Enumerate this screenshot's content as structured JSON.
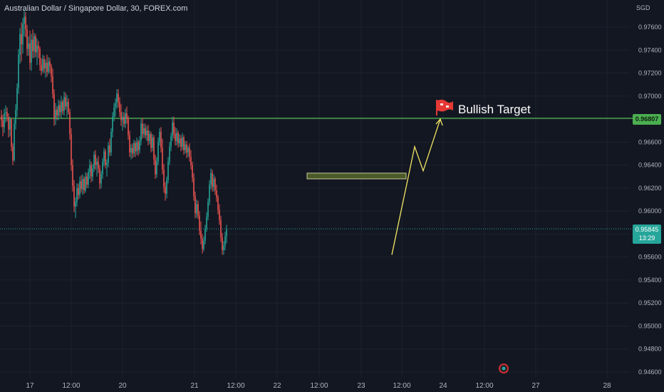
{
  "header": {
    "title": "Australian Dollar / Singapore Dollar, 30, FOREX.com",
    "currency": "SGD"
  },
  "price_tags": {
    "resistance": "0.96807",
    "current": "0.95845",
    "countdown": "13:29"
  },
  "annotation": {
    "label": "Bullish Target",
    "flag_icon": "red-flag-icon"
  },
  "colors": {
    "background": "#131722",
    "up": "#26a69a",
    "down": "#ef5350",
    "level": "#4caf50",
    "projection": "#f5e663"
  },
  "chart_data": {
    "type": "candlestick",
    "symbol": "Australian Dollar / Singapore Dollar",
    "interval": "30",
    "source": "FOREX.com",
    "ylim": [
      0.9455,
      0.9785
    ],
    "y_ticks": [
      "0.97600",
      "0.97400",
      "0.97200",
      "0.97000",
      "0.96600",
      "0.96400",
      "0.96200",
      "0.96000",
      "0.95600",
      "0.95400",
      "0.95200",
      "0.95000",
      "0.94800",
      "0.94600"
    ],
    "x_ticks": [
      "17",
      "12:00",
      "20",
      "21",
      "12:00",
      "22",
      "12:00",
      "23",
      "12:00",
      "24",
      "12:00",
      "27",
      "28"
    ],
    "horizontal_levels": [
      {
        "price": 0.96807,
        "color": "#4caf50"
      },
      {
        "price": 0.95845,
        "color": "#26a69a",
        "style": "dotted"
      }
    ],
    "zone": {
      "top": 0.9633,
      "bottom": 0.9628,
      "color": "#4a5a2a"
    },
    "projection_path": [
      {
        "bar": 274,
        "price": 0.9562
      },
      {
        "bar": 290,
        "price": 0.9656
      },
      {
        "bar": 296,
        "price": 0.9635
      },
      {
        "bar": 308,
        "price": 0.968
      }
    ],
    "candles_ohlc": [
      [
        0.9683,
        0.9688,
        0.9673,
        0.9679
      ],
      [
        0.9679,
        0.9684,
        0.9665,
        0.9673
      ],
      [
        0.9673,
        0.9689,
        0.9668,
        0.9685
      ],
      [
        0.9685,
        0.9692,
        0.9677,
        0.9686
      ],
      [
        0.9686,
        0.969,
        0.9678,
        0.9682
      ],
      [
        0.9682,
        0.9685,
        0.9664,
        0.9671
      ],
      [
        0.9671,
        0.9682,
        0.9665,
        0.968
      ],
      [
        0.968,
        0.9681,
        0.9652,
        0.9656
      ],
      [
        0.9656,
        0.9659,
        0.964,
        0.9644
      ],
      [
        0.9644,
        0.968,
        0.9643,
        0.9676
      ],
      [
        0.9676,
        0.9693,
        0.9671,
        0.9688
      ],
      [
        0.9688,
        0.9711,
        0.9682,
        0.9707
      ],
      [
        0.9707,
        0.9741,
        0.9702,
        0.9736
      ],
      [
        0.9736,
        0.9759,
        0.9728,
        0.9754
      ],
      [
        0.9754,
        0.9764,
        0.973,
        0.9745
      ],
      [
        0.9745,
        0.9768,
        0.9737,
        0.9763
      ],
      [
        0.9763,
        0.9775,
        0.9752,
        0.9769
      ],
      [
        0.9769,
        0.9773,
        0.9751,
        0.9758
      ],
      [
        0.9758,
        0.9762,
        0.9735,
        0.9741
      ],
      [
        0.9741,
        0.9752,
        0.9735,
        0.9746
      ],
      [
        0.9746,
        0.9757,
        0.9723,
        0.9729
      ],
      [
        0.9729,
        0.9754,
        0.9722,
        0.9749
      ],
      [
        0.9749,
        0.9758,
        0.9733,
        0.9739
      ],
      [
        0.9739,
        0.9755,
        0.9733,
        0.9752
      ],
      [
        0.9752,
        0.9754,
        0.9734,
        0.9738
      ],
      [
        0.9738,
        0.975,
        0.9727,
        0.9744
      ],
      [
        0.9744,
        0.9748,
        0.9733,
        0.9741
      ],
      [
        0.9741,
        0.9743,
        0.9722,
        0.9727
      ],
      [
        0.9727,
        0.9733,
        0.9718,
        0.9722
      ],
      [
        0.9722,
        0.9736,
        0.972,
        0.9732
      ],
      [
        0.9732,
        0.9735,
        0.972,
        0.9724
      ],
      [
        0.9724,
        0.9732,
        0.9716,
        0.9729
      ],
      [
        0.9729,
        0.9736,
        0.9717,
        0.9721
      ],
      [
        0.9721,
        0.9734,
        0.9719,
        0.973
      ],
      [
        0.973,
        0.9733,
        0.972,
        0.9726
      ],
      [
        0.9726,
        0.9728,
        0.9712,
        0.9717
      ],
      [
        0.9717,
        0.9724,
        0.9698,
        0.9702
      ],
      [
        0.9702,
        0.9706,
        0.9674,
        0.968
      ],
      [
        0.968,
        0.9694,
        0.9675,
        0.9688
      ],
      [
        0.9688,
        0.9691,
        0.9679,
        0.9683
      ],
      [
        0.9683,
        0.9697,
        0.9679,
        0.9692
      ],
      [
        0.9692,
        0.9696,
        0.9682,
        0.9686
      ],
      [
        0.9686,
        0.97,
        0.9681,
        0.9695
      ],
      [
        0.9695,
        0.9697,
        0.9684,
        0.9687
      ],
      [
        0.9687,
        0.9704,
        0.9683,
        0.9699
      ],
      [
        0.9699,
        0.9703,
        0.9688,
        0.9691
      ],
      [
        0.9691,
        0.9701,
        0.9682,
        0.9695
      ],
      [
        0.9695,
        0.9698,
        0.9684,
        0.9686
      ],
      [
        0.9686,
        0.9689,
        0.9662,
        0.9667
      ],
      [
        0.9667,
        0.9672,
        0.9635,
        0.964
      ],
      [
        0.964,
        0.9645,
        0.9617,
        0.9622
      ],
      [
        0.9622,
        0.9627,
        0.9599,
        0.9604
      ],
      [
        0.9604,
        0.9612,
        0.9594,
        0.9608
      ],
      [
        0.9608,
        0.9624,
        0.9604,
        0.962
      ],
      [
        0.962,
        0.9624,
        0.961,
        0.9614
      ],
      [
        0.9614,
        0.963,
        0.9611,
        0.9626
      ],
      [
        0.9626,
        0.9631,
        0.9616,
        0.9619
      ],
      [
        0.9619,
        0.9632,
        0.9614,
        0.9628
      ],
      [
        0.9628,
        0.963,
        0.9615,
        0.9618
      ],
      [
        0.9618,
        0.9634,
        0.9616,
        0.963
      ],
      [
        0.963,
        0.9633,
        0.962,
        0.9623
      ],
      [
        0.9623,
        0.9637,
        0.962,
        0.9634
      ],
      [
        0.9634,
        0.9645,
        0.9628,
        0.964
      ],
      [
        0.964,
        0.9643,
        0.9625,
        0.963
      ],
      [
        0.963,
        0.9641,
        0.9626,
        0.9637
      ],
      [
        0.9637,
        0.9652,
        0.9634,
        0.9649
      ],
      [
        0.9649,
        0.9653,
        0.9636,
        0.964
      ],
      [
        0.964,
        0.9646,
        0.963,
        0.9643
      ],
      [
        0.9643,
        0.9648,
        0.9633,
        0.9637
      ],
      [
        0.9637,
        0.964,
        0.9619,
        0.9624
      ],
      [
        0.9624,
        0.9635,
        0.962,
        0.9632
      ],
      [
        0.9632,
        0.9646,
        0.9628,
        0.9643
      ],
      [
        0.9643,
        0.9655,
        0.9639,
        0.9652
      ],
      [
        0.9652,
        0.9654,
        0.9637,
        0.964
      ],
      [
        0.964,
        0.9645,
        0.963,
        0.9642
      ],
      [
        0.9642,
        0.966,
        0.9638,
        0.9657
      ],
      [
        0.9657,
        0.9663,
        0.9648,
        0.9651
      ],
      [
        0.9651,
        0.9672,
        0.9648,
        0.9669
      ],
      [
        0.9669,
        0.9686,
        0.9664,
        0.9682
      ],
      [
        0.9682,
        0.9694,
        0.9678,
        0.969
      ],
      [
        0.969,
        0.9698,
        0.9682,
        0.9694
      ],
      [
        0.9694,
        0.9706,
        0.9689,
        0.9702
      ],
      [
        0.9702,
        0.9706,
        0.969,
        0.9695
      ],
      [
        0.9695,
        0.9699,
        0.9682,
        0.9686
      ],
      [
        0.9686,
        0.9693,
        0.9674,
        0.9679
      ],
      [
        0.9679,
        0.9686,
        0.967,
        0.9682
      ],
      [
        0.9682,
        0.9686,
        0.9673,
        0.9676
      ],
      [
        0.9676,
        0.9689,
        0.9672,
        0.9685
      ],
      [
        0.9685,
        0.9691,
        0.9676,
        0.968
      ],
      [
        0.968,
        0.9683,
        0.9662,
        0.9666
      ],
      [
        0.9666,
        0.967,
        0.9647,
        0.9651
      ],
      [
        0.9651,
        0.9658,
        0.9645,
        0.9655
      ],
      [
        0.9655,
        0.9659,
        0.9646,
        0.965
      ],
      [
        0.965,
        0.9662,
        0.9647,
        0.9659
      ],
      [
        0.9659,
        0.9661,
        0.9647,
        0.9652
      ],
      [
        0.9652,
        0.9664,
        0.9649,
        0.966
      ],
      [
        0.966,
        0.9662,
        0.9648,
        0.9653
      ],
      [
        0.9653,
        0.9665,
        0.965,
        0.9661
      ],
      [
        0.9661,
        0.968,
        0.9657,
        0.9676
      ],
      [
        0.9676,
        0.9681,
        0.9663,
        0.9667
      ],
      [
        0.9667,
        0.9676,
        0.9664,
        0.9672
      ],
      [
        0.9672,
        0.9676,
        0.9663,
        0.9666
      ],
      [
        0.9666,
        0.9674,
        0.9661,
        0.967
      ],
      [
        0.967,
        0.9675,
        0.9657,
        0.9661
      ],
      [
        0.9661,
        0.967,
        0.9658,
        0.9667
      ],
      [
        0.9667,
        0.9669,
        0.9651,
        0.9655
      ],
      [
        0.9655,
        0.9667,
        0.9652,
        0.9664
      ],
      [
        0.9664,
        0.9666,
        0.964,
        0.9645
      ],
      [
        0.9645,
        0.9649,
        0.9628,
        0.9632
      ],
      [
        0.9632,
        0.9647,
        0.9629,
        0.9643
      ],
      [
        0.9643,
        0.9664,
        0.964,
        0.966
      ],
      [
        0.966,
        0.9672,
        0.9657,
        0.9669
      ],
      [
        0.9669,
        0.9673,
        0.9651,
        0.9655
      ],
      [
        0.9655,
        0.9663,
        0.9632,
        0.9636
      ],
      [
        0.9636,
        0.9641,
        0.9616,
        0.9621
      ],
      [
        0.9621,
        0.9625,
        0.9609,
        0.9615
      ],
      [
        0.9615,
        0.963,
        0.9611,
        0.9627
      ],
      [
        0.9627,
        0.9647,
        0.9624,
        0.9643
      ],
      [
        0.9643,
        0.966,
        0.964,
        0.9656
      ],
      [
        0.9656,
        0.9668,
        0.9652,
        0.9665
      ],
      [
        0.9665,
        0.9682,
        0.9661,
        0.9677
      ],
      [
        0.9677,
        0.9682,
        0.9663,
        0.9667
      ],
      [
        0.9667,
        0.9673,
        0.9657,
        0.9661
      ],
      [
        0.9661,
        0.9672,
        0.9657,
        0.9668
      ],
      [
        0.9668,
        0.967,
        0.9655,
        0.9659
      ],
      [
        0.9659,
        0.9667,
        0.9656,
        0.9663
      ],
      [
        0.9663,
        0.9666,
        0.9652,
        0.9656
      ],
      [
        0.9656,
        0.9668,
        0.9653,
        0.9664
      ],
      [
        0.9664,
        0.9666,
        0.9649,
        0.9653
      ],
      [
        0.9653,
        0.9661,
        0.965,
        0.9658
      ],
      [
        0.9658,
        0.9661,
        0.9646,
        0.9651
      ],
      [
        0.9651,
        0.9657,
        0.9647,
        0.9655
      ],
      [
        0.9655,
        0.9659,
        0.9643,
        0.9647
      ],
      [
        0.9647,
        0.9653,
        0.9636,
        0.964
      ],
      [
        0.964,
        0.9643,
        0.9625,
        0.9629
      ],
      [
        0.9629,
        0.9633,
        0.9609,
        0.9613
      ],
      [
        0.9613,
        0.9617,
        0.9594,
        0.9598
      ],
      [
        0.9598,
        0.961,
        0.9594,
        0.9606
      ],
      [
        0.9606,
        0.9609,
        0.9593,
        0.9596
      ],
      [
        0.9596,
        0.96,
        0.9579,
        0.9583
      ],
      [
        0.9583,
        0.9591,
        0.9571,
        0.9576
      ],
      [
        0.9576,
        0.958,
        0.9563,
        0.9567
      ],
      [
        0.9567,
        0.9578,
        0.9565,
        0.9574
      ],
      [
        0.9574,
        0.9588,
        0.9571,
        0.9585
      ],
      [
        0.9585,
        0.9599,
        0.9582,
        0.9595
      ],
      [
        0.9595,
        0.9611,
        0.9592,
        0.9608
      ],
      [
        0.9608,
        0.9627,
        0.9605,
        0.9623
      ],
      [
        0.9623,
        0.9637,
        0.9619,
        0.9633
      ],
      [
        0.9633,
        0.9636,
        0.9617,
        0.9621
      ],
      [
        0.9621,
        0.9632,
        0.9617,
        0.9628
      ],
      [
        0.9628,
        0.963,
        0.9614,
        0.9618
      ],
      [
        0.9618,
        0.9623,
        0.9608,
        0.9612
      ],
      [
        0.9612,
        0.9614,
        0.9597,
        0.9601
      ],
      [
        0.9601,
        0.9606,
        0.9588,
        0.9592
      ],
      [
        0.9592,
        0.9596,
        0.9573,
        0.9577
      ],
      [
        0.9577,
        0.9581,
        0.9562,
        0.9566
      ],
      [
        0.9566,
        0.9574,
        0.9562,
        0.957
      ],
      [
        0.957,
        0.9582,
        0.9566,
        0.9578
      ],
      [
        0.9578,
        0.9588,
        0.9572,
        0.9584
      ]
    ]
  }
}
